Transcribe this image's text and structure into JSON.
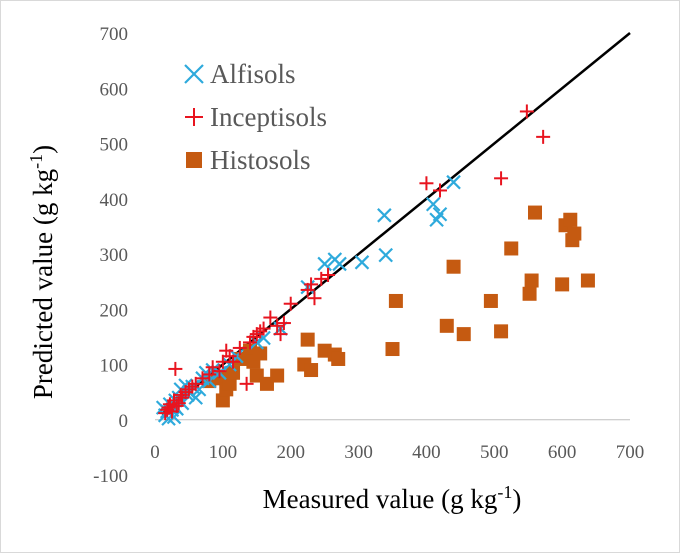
{
  "chart_data": {
    "type": "scatter",
    "title": "",
    "xlabel": "Measured value (g kg",
    "xlabel_sup": "-1",
    "xlabel_tail": ")",
    "ylabel": "Predicted value  (g kg",
    "ylabel_sup": "-1",
    "ylabel_tail": ")",
    "xlim": [
      0,
      700
    ],
    "ylim": [
      -100,
      700
    ],
    "x_ticks": [
      "0",
      "100",
      "200",
      "300",
      "400",
      "500",
      "600",
      "700"
    ],
    "y_ticks": [
      "-100",
      "0",
      "100",
      "200",
      "300",
      "400",
      "500",
      "600",
      "700"
    ],
    "grid": false,
    "legend_position": "top-left",
    "reference_line": {
      "from": [
        10,
        10
      ],
      "to": [
        700,
        700
      ],
      "color": "#000000"
    },
    "series": [
      {
        "name": "Alfisols",
        "marker": "x",
        "color": "#2eaadc",
        "points": [
          [
            12,
            22
          ],
          [
            15,
            8
          ],
          [
            18,
            15
          ],
          [
            20,
            2
          ],
          [
            22,
            28
          ],
          [
            25,
            18
          ],
          [
            28,
            5
          ],
          [
            30,
            35
          ],
          [
            32,
            20
          ],
          [
            35,
            40
          ],
          [
            38,
            55
          ],
          [
            40,
            30
          ],
          [
            45,
            62
          ],
          [
            48,
            45
          ],
          [
            50,
            50
          ],
          [
            55,
            60
          ],
          [
            60,
            40
          ],
          [
            65,
            55
          ],
          [
            70,
            75
          ],
          [
            75,
            85
          ],
          [
            80,
            70
          ],
          [
            85,
            90
          ],
          [
            95,
            85
          ],
          [
            110,
            100
          ],
          [
            120,
            115
          ],
          [
            150,
            140
          ],
          [
            160,
            148
          ],
          [
            185,
            165
          ],
          [
            225,
            240
          ],
          [
            250,
            282
          ],
          [
            265,
            290
          ],
          [
            272,
            282
          ],
          [
            305,
            285
          ],
          [
            338,
            370
          ],
          [
            340,
            298
          ],
          [
            410,
            390
          ],
          [
            415,
            362
          ],
          [
            420,
            372
          ],
          [
            440,
            430
          ]
        ]
      },
      {
        "name": "Inceptisols",
        "marker": "plus",
        "color": "#e8141f",
        "points": [
          [
            15,
            12
          ],
          [
            18,
            18
          ],
          [
            20,
            22
          ],
          [
            22,
            28
          ],
          [
            25,
            15
          ],
          [
            28,
            35
          ],
          [
            30,
            92
          ],
          [
            32,
            25
          ],
          [
            35,
            30
          ],
          [
            38,
            45
          ],
          [
            40,
            40
          ],
          [
            45,
            50
          ],
          [
            50,
            55
          ],
          [
            55,
            60
          ],
          [
            60,
            65
          ],
          [
            70,
            75
          ],
          [
            80,
            82
          ],
          [
            85,
            95
          ],
          [
            95,
            88
          ],
          [
            100,
            105
          ],
          [
            105,
            125
          ],
          [
            110,
            115
          ],
          [
            115,
            105
          ],
          [
            125,
            130
          ],
          [
            135,
            65
          ],
          [
            140,
            140
          ],
          [
            145,
            150
          ],
          [
            150,
            155
          ],
          [
            155,
            160
          ],
          [
            160,
            165
          ],
          [
            170,
            185
          ],
          [
            180,
            170
          ],
          [
            185,
            155
          ],
          [
            190,
            175
          ],
          [
            200,
            210
          ],
          [
            225,
            235
          ],
          [
            230,
            245
          ],
          [
            235,
            220
          ],
          [
            245,
            255
          ],
          [
            255,
            262
          ],
          [
            400,
            428
          ],
          [
            420,
            415
          ],
          [
            510,
            437
          ],
          [
            548,
            558
          ],
          [
            572,
            512
          ]
        ]
      },
      {
        "name": "Histosols",
        "marker": "square",
        "color": "#c55a11",
        "points": [
          [
            80,
            70
          ],
          [
            95,
            75
          ],
          [
            100,
            35
          ],
          [
            105,
            55
          ],
          [
            110,
            65
          ],
          [
            115,
            85
          ],
          [
            125,
            110
          ],
          [
            140,
            125
          ],
          [
            145,
            105
          ],
          [
            150,
            80
          ],
          [
            155,
            120
          ],
          [
            165,
            65
          ],
          [
            180,
            80
          ],
          [
            220,
            100
          ],
          [
            225,
            145
          ],
          [
            230,
            90
          ],
          [
            250,
            125
          ],
          [
            265,
            118
          ],
          [
            270,
            110
          ],
          [
            350,
            128
          ],
          [
            355,
            215
          ],
          [
            430,
            170
          ],
          [
            440,
            277
          ],
          [
            455,
            155
          ],
          [
            495,
            215
          ],
          [
            510,
            160
          ],
          [
            525,
            310
          ],
          [
            552,
            228
          ],
          [
            555,
            252
          ],
          [
            560,
            375
          ],
          [
            600,
            245
          ],
          [
            605,
            352
          ],
          [
            612,
            362
          ],
          [
            615,
            325
          ],
          [
            618,
            337
          ],
          [
            638,
            252
          ]
        ]
      }
    ]
  }
}
